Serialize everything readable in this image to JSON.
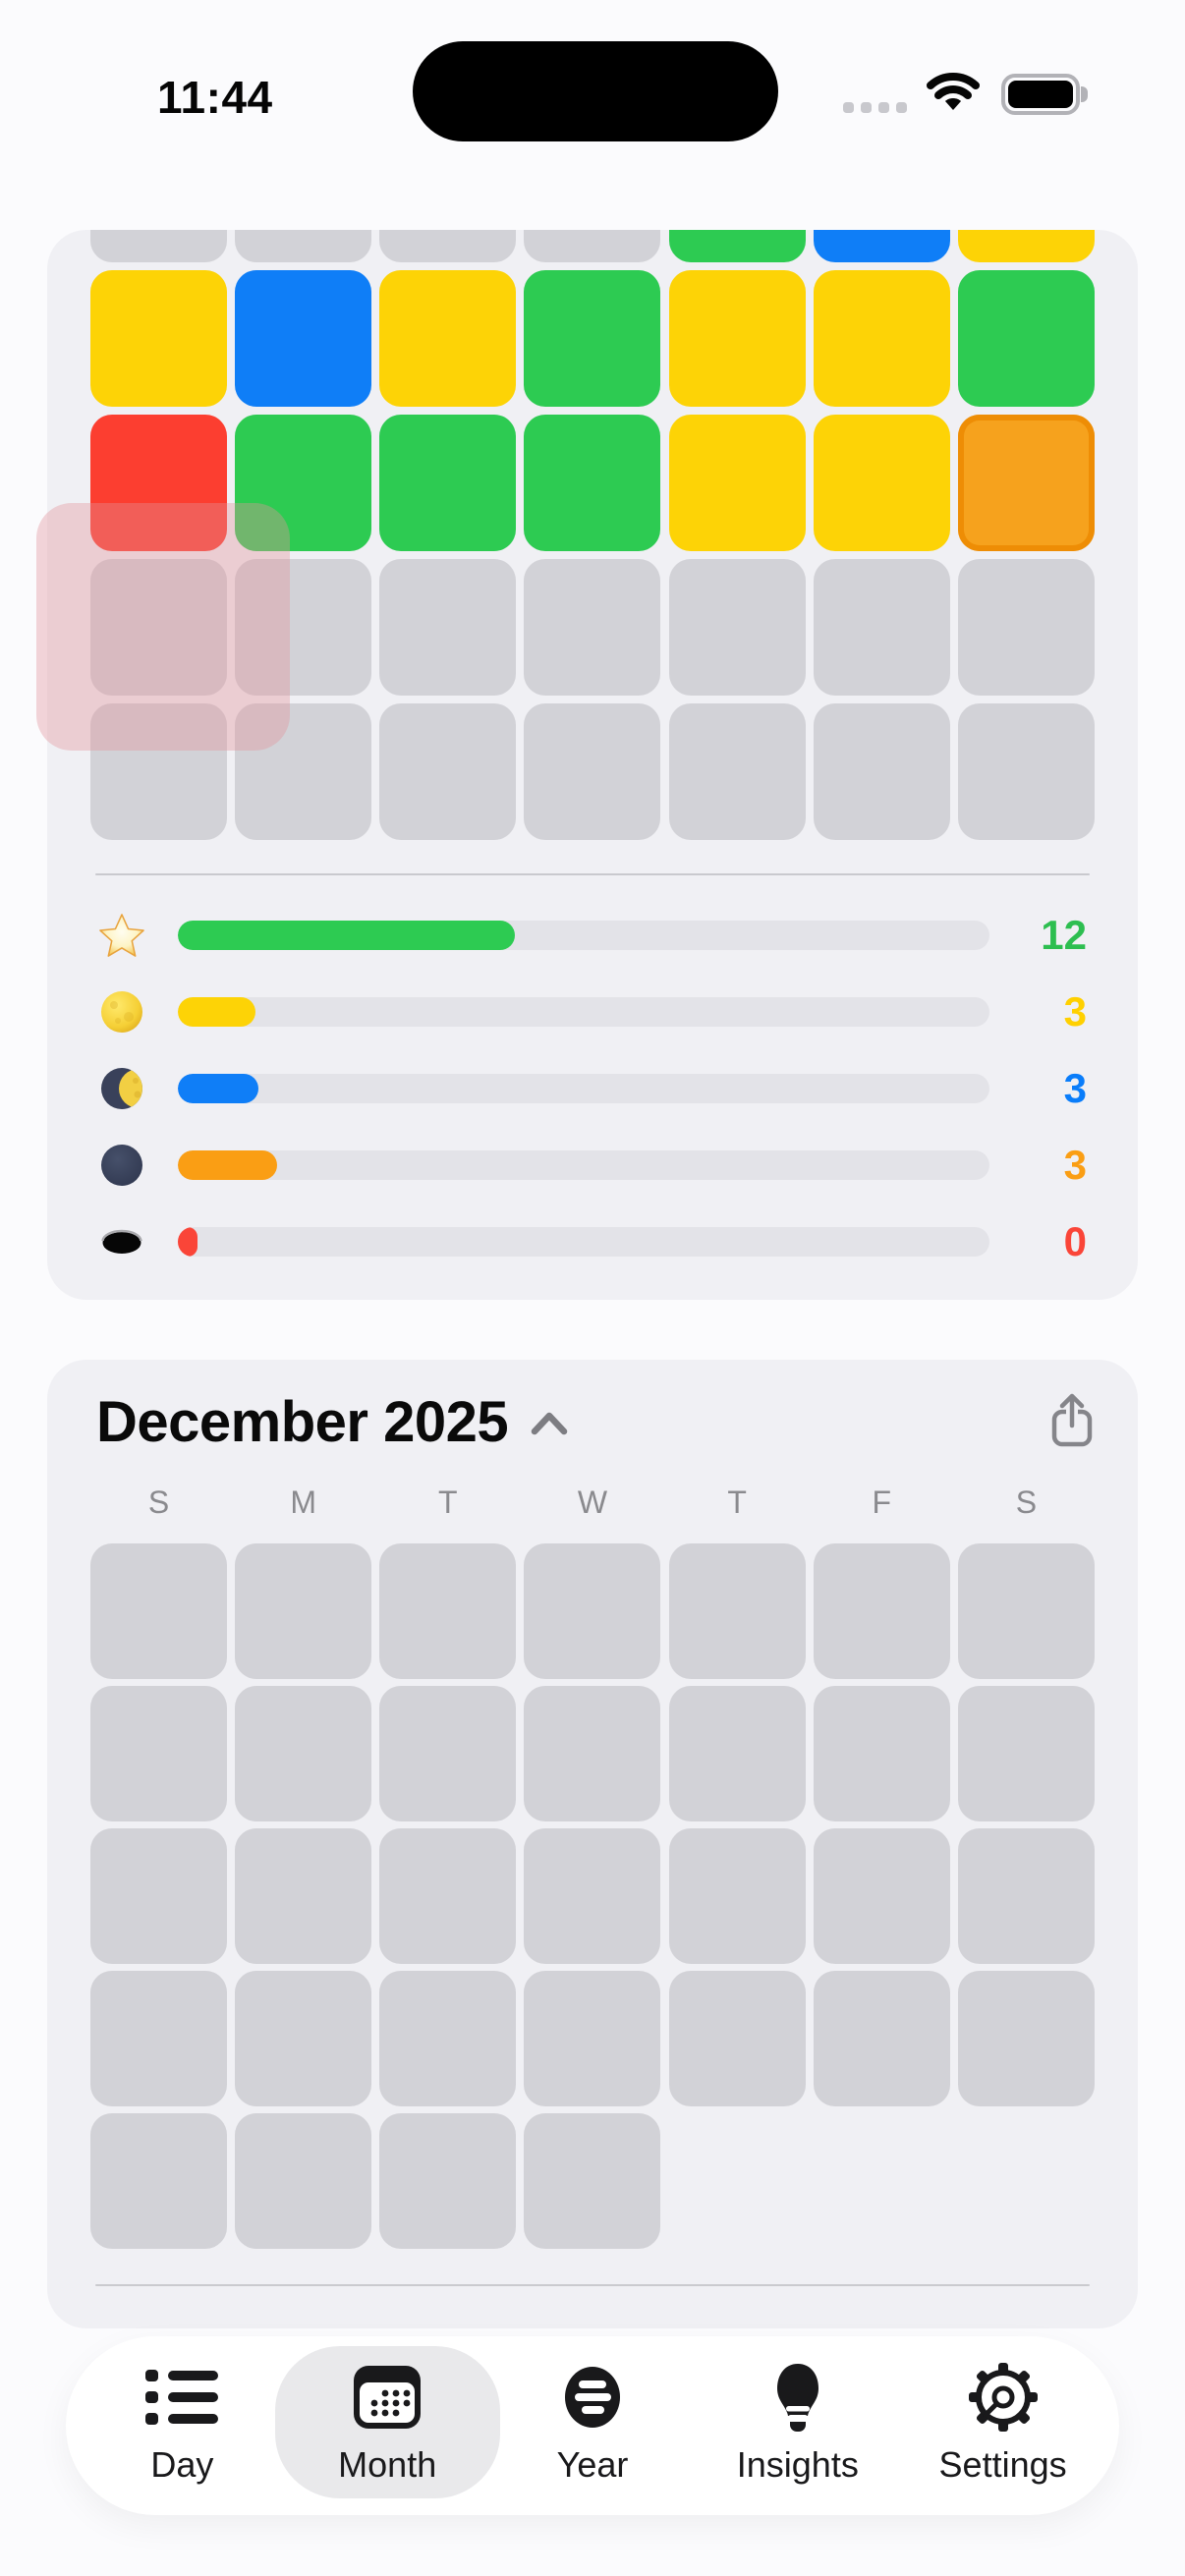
{
  "status_bar": {
    "time": "11:44",
    "signal_dots": 4,
    "battery_level": "full"
  },
  "palette": {
    "gray": "#d2d2d7",
    "green": "#2dcb52",
    "blue": "#0f7ef7",
    "yellow": "#fdd306",
    "red": "#fc3e30",
    "orange": "#f6a21d",
    "orange_ring": "#ee8d05",
    "card_bg": "#f0f0f4",
    "track": "#e3e3e8",
    "pink_overlay": "rgba(226,146,156,0.38)"
  },
  "mood_grid": {
    "rows": [
      [
        "gray",
        "gray",
        "gray",
        "gray",
        "green",
        "blue",
        "yellow"
      ],
      [
        "yellow",
        "blue",
        "yellow",
        "green",
        "yellow",
        "yellow",
        "green"
      ],
      [
        "red",
        "green",
        "green",
        "green",
        "yellow",
        "yellow",
        "orange-selected"
      ],
      [
        "gray",
        "gray",
        "gray",
        "gray",
        "gray",
        "gray",
        "gray"
      ],
      [
        "gray",
        "gray",
        "gray",
        "gray",
        "gray",
        "gray",
        "gray"
      ]
    ]
  },
  "stats": {
    "rows": [
      {
        "icon": "star-icon",
        "count": "12",
        "bar_color": "#2dcb52",
        "value_color": "#2dbe50",
        "fill_pct": 41.5
      },
      {
        "icon": "full-moon-icon",
        "count": "3",
        "bar_color": "#fdd306",
        "value_color": "#ffd000",
        "fill_pct": 9.6
      },
      {
        "icon": "last-quarter-moon-icon",
        "count": "3",
        "bar_color": "#0f7ef7",
        "value_color": "#0a7dfa",
        "fill_pct": 9.9
      },
      {
        "icon": "new-moon-icon",
        "count": "3",
        "bar_color": "#fa9e14",
        "value_color": "#fa9e14",
        "fill_pct": 12.2
      },
      {
        "icon": "hole-icon",
        "count": "0",
        "bar_color": "#fa4538",
        "value_color": "#fa4538",
        "fill_pct": 2.4
      }
    ]
  },
  "month_calendar": {
    "title": "December 2025",
    "collapse_icon": "chevron-up-icon",
    "share_icon": "share-icon",
    "weekday_headers": [
      "S",
      "M",
      "T",
      "W",
      "T",
      "F",
      "S"
    ],
    "week_cell_counts": [
      7,
      7,
      7,
      7,
      4
    ]
  },
  "tab_bar": {
    "items": [
      {
        "label": "Day",
        "icon": "list-icon",
        "selected": false
      },
      {
        "label": "Month",
        "icon": "calendar-icon",
        "selected": true
      },
      {
        "label": "Year",
        "icon": "year-sphere-icon",
        "selected": false
      },
      {
        "label": "Insights",
        "icon": "lightbulb-icon",
        "selected": false
      },
      {
        "label": "Settings",
        "icon": "gear-icon",
        "selected": false
      }
    ]
  }
}
